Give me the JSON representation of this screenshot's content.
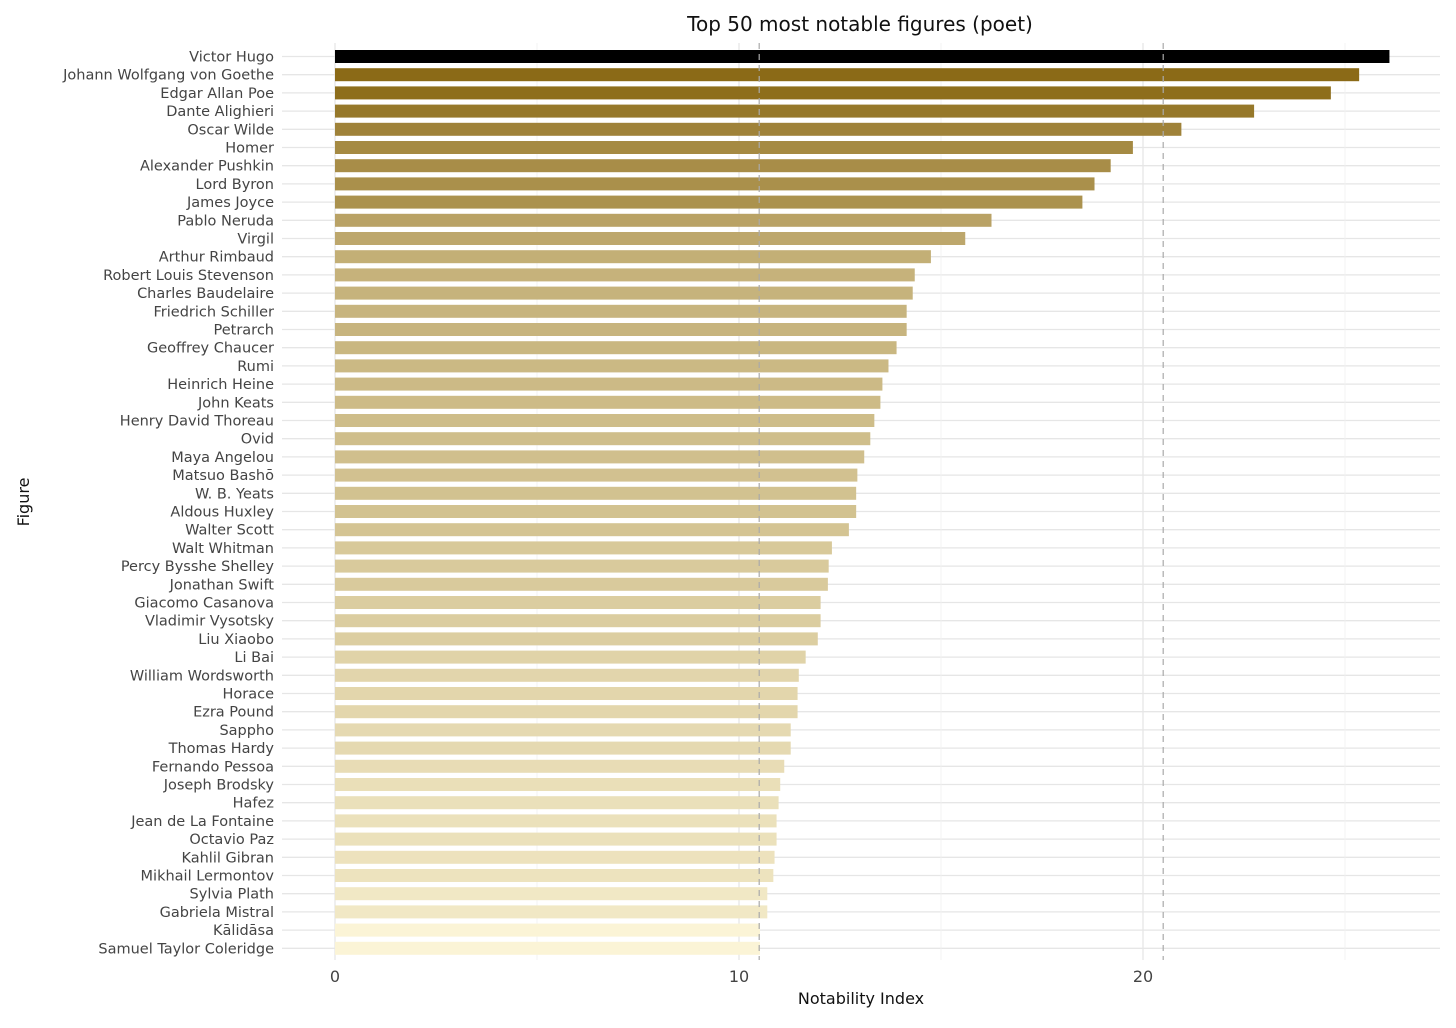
{
  "chart_data": {
    "type": "bar",
    "orientation": "horizontal",
    "title": "Top 50 most notable figures (poet)",
    "xlabel": "Notability Index",
    "ylabel": "Figure",
    "xlim": [
      -2.6,
      27.3
    ],
    "xticks": [
      0,
      10,
      20
    ],
    "x_minor_ticks": [
      5,
      15,
      25
    ],
    "grid": true,
    "reference_lines": [
      10.5,
      20.5
    ],
    "color_low": "#fbf4d6",
    "color_high": "#8b6a17",
    "color_top": "#000000",
    "categories": [
      "Victor Hugo",
      "Johann Wolfgang von Goethe",
      "Edgar Allan Poe",
      "Dante Alighieri",
      "Oscar Wilde",
      "Homer",
      "Alexander Pushkin",
      "Lord Byron",
      "James Joyce",
      "Pablo Neruda",
      "Virgil",
      "Arthur Rimbaud",
      "Robert Louis Stevenson",
      "Charles Baudelaire",
      "Friedrich Schiller",
      "Petrarch",
      "Geoffrey Chaucer",
      "Rumi",
      "Heinrich Heine",
      "John Keats",
      "Henry David Thoreau",
      "Ovid",
      "Maya Angelou",
      "Matsuo Bashō",
      "W. B. Yeats",
      "Aldous Huxley",
      "Walter Scott",
      "Walt Whitman",
      "Percy Bysshe Shelley",
      "Jonathan Swift",
      "Giacomo Casanova",
      "Vladimir Vysotsky",
      "Liu Xiaobo",
      "Li Bai",
      "William Wordsworth",
      "Horace",
      "Ezra Pound",
      "Sappho",
      "Thomas Hardy",
      "Fernando Pessoa",
      "Joseph Brodsky",
      "Hafez",
      "Jean de La Fontaine",
      "Octavio Paz",
      "Kahlil Gibran",
      "Mikhail Lermontov",
      "Sylvia Plath",
      "Gabriela Mistral",
      "Kālidāsa",
      "Samuel Taylor Coleridge"
    ],
    "values": [
      26.1,
      25.35,
      24.65,
      22.75,
      20.95,
      19.75,
      19.2,
      18.8,
      18.5,
      16.25,
      15.6,
      14.75,
      14.35,
      14.3,
      14.15,
      14.15,
      13.9,
      13.7,
      13.55,
      13.5,
      13.35,
      13.25,
      13.1,
      12.93,
      12.9,
      12.9,
      12.72,
      12.3,
      12.22,
      12.2,
      12.02,
      12.02,
      11.95,
      11.65,
      11.48,
      11.45,
      11.45,
      11.28,
      11.28,
      11.12,
      11.02,
      10.98,
      10.93,
      10.93,
      10.88,
      10.85,
      10.7,
      10.7,
      10.52,
      10.52
    ]
  }
}
